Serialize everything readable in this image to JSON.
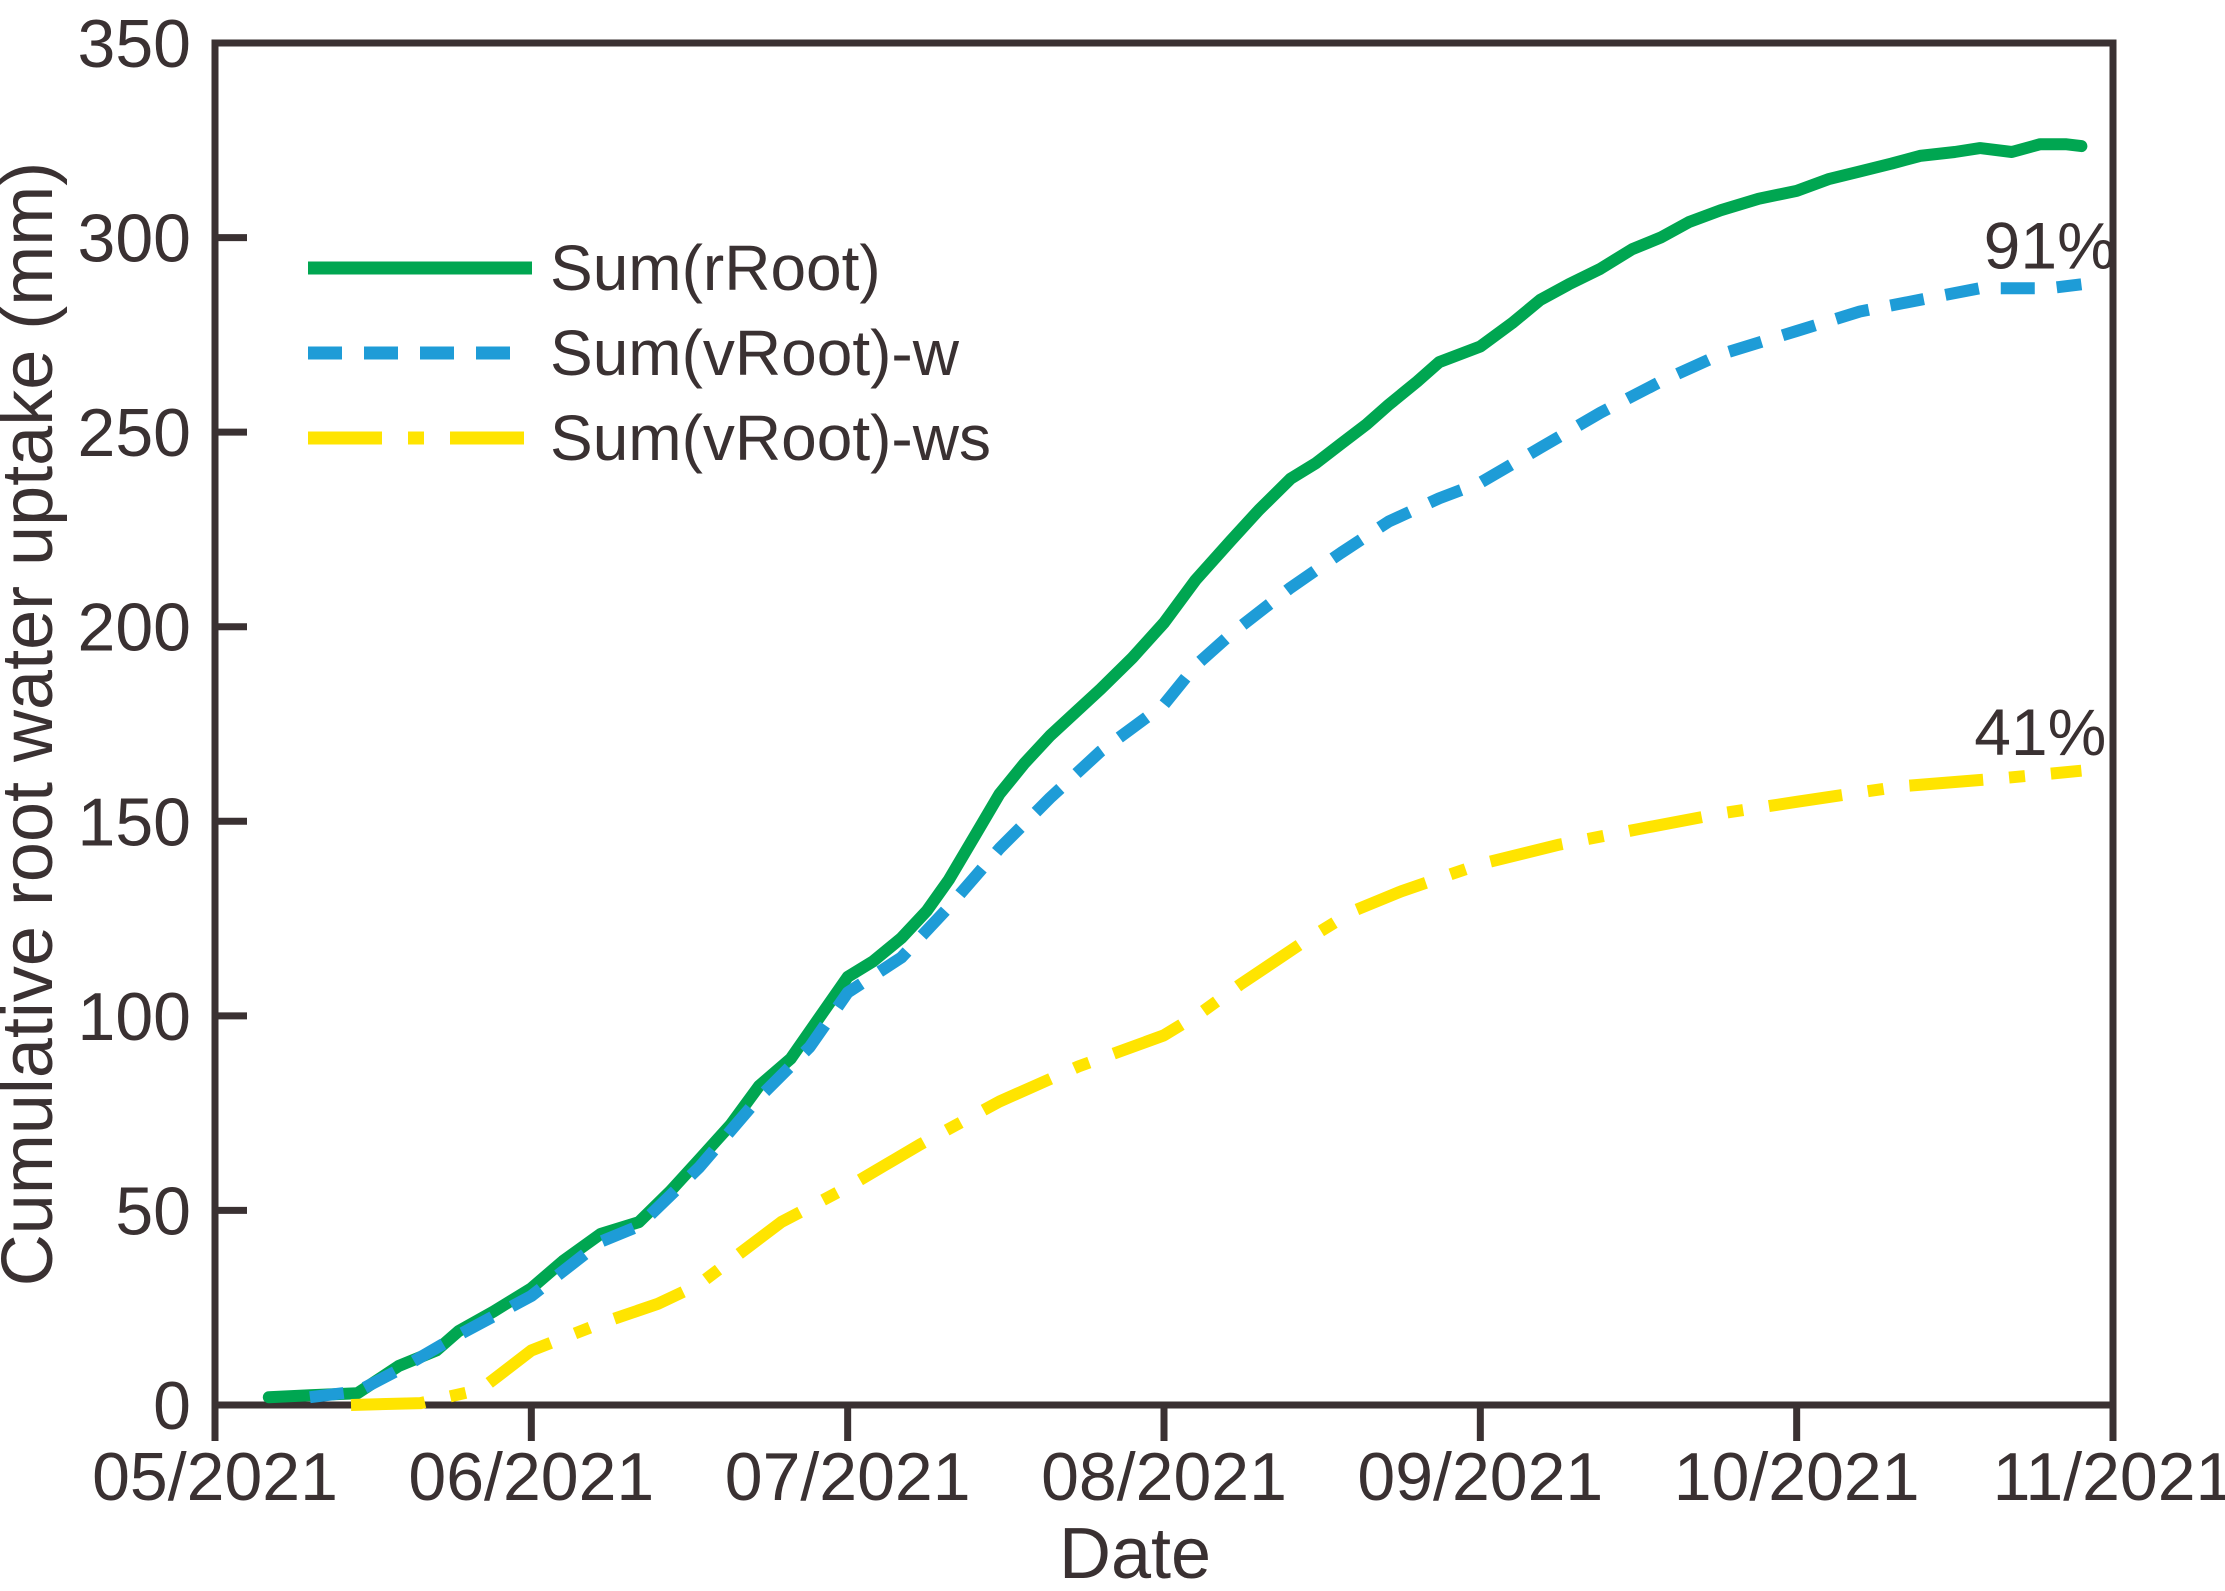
{
  "figure": {
    "background": "#ffffff",
    "ink_color": "#3a3132"
  },
  "chart_data": {
    "type": "line",
    "title": "",
    "xlabel": "Date",
    "ylabel": "Cumulative root water uptake (mm)",
    "x_unit_note": "x values are month offsets from 05/2021 (0 = 05/2021, 6 = 11/2021)",
    "x_axis": {
      "tick_labels": [
        "05/2021",
        "06/2021",
        "07/2021",
        "08/2021",
        "09/2021",
        "10/2021",
        "11/2021"
      ],
      "tick_positions": [
        0,
        1,
        2,
        3,
        4,
        5,
        6
      ],
      "lim": [
        0,
        6
      ]
    },
    "y_axis": {
      "ticks": [
        0,
        50,
        100,
        150,
        200,
        250,
        300,
        350
      ],
      "lim": [
        0,
        350
      ]
    },
    "grid": false,
    "legend_position": "upper-left-inside",
    "series": [
      {
        "name": "Sum(rRoot)",
        "color": "#00a651",
        "style": "solid",
        "final_value_mm": 324,
        "points": [
          [
            0.17,
            2
          ],
          [
            0.3,
            2.5
          ],
          [
            0.45,
            3
          ],
          [
            0.58,
            10
          ],
          [
            0.7,
            14
          ],
          [
            0.77,
            19
          ],
          [
            0.88,
            24
          ],
          [
            1.0,
            30
          ],
          [
            1.1,
            37
          ],
          [
            1.22,
            44
          ],
          [
            1.34,
            47
          ],
          [
            1.44,
            55
          ],
          [
            1.53,
            63
          ],
          [
            1.63,
            72
          ],
          [
            1.72,
            82
          ],
          [
            1.82,
            89
          ],
          [
            1.88,
            96
          ],
          [
            2.0,
            110
          ],
          [
            2.08,
            114
          ],
          [
            2.17,
            120
          ],
          [
            2.25,
            127
          ],
          [
            2.32,
            135
          ],
          [
            2.4,
            146
          ],
          [
            2.48,
            157
          ],
          [
            2.56,
            165
          ],
          [
            2.64,
            172
          ],
          [
            2.72,
            178
          ],
          [
            2.8,
            184
          ],
          [
            2.9,
            192
          ],
          [
            3.0,
            201
          ],
          [
            3.1,
            212
          ],
          [
            3.21,
            222
          ],
          [
            3.3,
            230
          ],
          [
            3.4,
            238
          ],
          [
            3.48,
            242
          ],
          [
            3.56,
            247
          ],
          [
            3.64,
            252
          ],
          [
            3.71,
            257
          ],
          [
            3.8,
            263
          ],
          [
            3.87,
            268
          ],
          [
            4.0,
            272
          ],
          [
            4.1,
            278
          ],
          [
            4.19,
            284
          ],
          [
            4.28,
            288
          ],
          [
            4.38,
            292
          ],
          [
            4.48,
            297
          ],
          [
            4.57,
            300
          ],
          [
            4.66,
            304
          ],
          [
            4.76,
            307
          ],
          [
            4.88,
            310
          ],
          [
            5.0,
            312
          ],
          [
            5.1,
            315
          ],
          [
            5.2,
            317
          ],
          [
            5.3,
            319
          ],
          [
            5.39,
            321
          ],
          [
            5.5,
            322
          ],
          [
            5.58,
            323
          ],
          [
            5.68,
            322
          ],
          [
            5.77,
            324
          ],
          [
            5.85,
            324
          ],
          [
            5.9,
            323.5
          ]
        ]
      },
      {
        "name": "Sum(vRoot)-w",
        "color": "#1e9cd7",
        "style": "dashed",
        "final_value_mm": 288,
        "points": [
          [
            0.3,
            2
          ],
          [
            0.45,
            3.5
          ],
          [
            0.58,
            9
          ],
          [
            0.77,
            18
          ],
          [
            1.0,
            28
          ],
          [
            1.22,
            42
          ],
          [
            1.34,
            46
          ],
          [
            1.53,
            61
          ],
          [
            1.72,
            79
          ],
          [
            1.88,
            92
          ],
          [
            2.0,
            106
          ],
          [
            2.17,
            115
          ],
          [
            2.32,
            128
          ],
          [
            2.48,
            143
          ],
          [
            2.64,
            156
          ],
          [
            2.8,
            168
          ],
          [
            3.0,
            180
          ],
          [
            3.1,
            190
          ],
          [
            3.21,
            198
          ],
          [
            3.4,
            210
          ],
          [
            3.56,
            219
          ],
          [
            3.71,
            227
          ],
          [
            3.87,
            233
          ],
          [
            4.0,
            237
          ],
          [
            4.19,
            246
          ],
          [
            4.38,
            255
          ],
          [
            4.57,
            263
          ],
          [
            4.76,
            270
          ],
          [
            5.0,
            276
          ],
          [
            5.2,
            281
          ],
          [
            5.39,
            284
          ],
          [
            5.58,
            287
          ],
          [
            5.7,
            287
          ],
          [
            5.8,
            287
          ],
          [
            5.9,
            288
          ]
        ]
      },
      {
        "name": "Sum(vRoot)-ws",
        "color": "#ffe400",
        "style": "dashdot",
        "final_value_mm": 163,
        "points": [
          [
            0.43,
            0
          ],
          [
            0.65,
            0.5
          ],
          [
            0.84,
            4
          ],
          [
            1.0,
            14
          ],
          [
            1.22,
            21
          ],
          [
            1.4,
            26
          ],
          [
            1.53,
            31
          ],
          [
            1.66,
            39
          ],
          [
            1.79,
            47
          ],
          [
            2.0,
            56
          ],
          [
            2.23,
            67
          ],
          [
            2.48,
            78
          ],
          [
            2.73,
            87
          ],
          [
            3.0,
            95
          ],
          [
            3.12,
            101
          ],
          [
            3.24,
            108
          ],
          [
            3.35,
            114
          ],
          [
            3.46,
            120
          ],
          [
            3.6,
            127
          ],
          [
            3.75,
            132
          ],
          [
            4.0,
            139
          ],
          [
            4.25,
            144
          ],
          [
            4.5,
            148
          ],
          [
            4.76,
            152
          ],
          [
            5.0,
            155
          ],
          [
            5.33,
            159
          ],
          [
            5.64,
            161
          ],
          [
            5.9,
            163
          ]
        ]
      }
    ],
    "annotations": [
      {
        "text": "91%",
        "x": 5.8,
        "y": 298,
        "refers_to": "Sum(vRoot)-w"
      },
      {
        "text": "41%",
        "x": 5.77,
        "y": 173,
        "refers_to": "Sum(vRoot)-ws"
      }
    ]
  }
}
